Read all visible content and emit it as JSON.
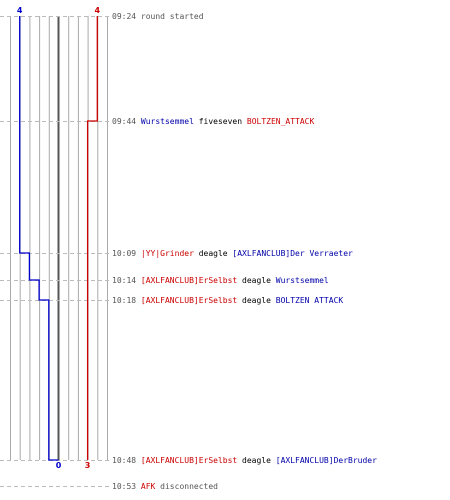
{
  "colors": {
    "team_blue": "#0000cc",
    "team_red": "#cc0000",
    "grid": "#aaaaaa",
    "zero_line": "#555555",
    "dashed": "#bbbbbb"
  },
  "chart_data": {
    "type": "line",
    "x_axis": "players alive",
    "y_axis": "time",
    "xlim": [
      -5,
      5
    ],
    "grid": true,
    "start_counts": {
      "blue": "4",
      "red": "4"
    },
    "end_counts": {
      "blue": "0",
      "red": "3"
    },
    "series": [
      {
        "team": "blue",
        "times": [
          "09:24",
          "10:09",
          "10:14",
          "10:18",
          "10:48"
        ],
        "values": [
          4,
          3,
          2,
          1,
          0
        ]
      },
      {
        "team": "red",
        "times": [
          "09:24",
          "09:44",
          "10:48"
        ],
        "values": [
          4,
          3,
          3
        ]
      }
    ],
    "events": [
      {
        "time": "09:24",
        "parts": [
          {
            "text": "round started",
            "color": "event"
          }
        ]
      },
      {
        "time": "09:44",
        "parts": [
          {
            "text": "Wurstsemmel",
            "color": "blue"
          },
          {
            "text": " fiveseven ",
            "color": "black"
          },
          {
            "text": "BOLTZEN_ATTACK",
            "color": "red"
          }
        ]
      },
      {
        "time": "10:09",
        "parts": [
          {
            "text": "|YY|Grinder",
            "color": "red"
          },
          {
            "text": " deagle ",
            "color": "black"
          },
          {
            "text": "[AXLFANCLUB]Der Verraeter",
            "color": "blue"
          }
        ]
      },
      {
        "time": "10:14",
        "parts": [
          {
            "text": "[AXLFANCLUB]ErSelbst",
            "color": "red"
          },
          {
            "text": " deagle ",
            "color": "black"
          },
          {
            "text": "Wurstsemmel",
            "color": "blue"
          }
        ]
      },
      {
        "time": "10:18",
        "parts": [
          {
            "text": "[AXLFANCLUB]ErSelbst",
            "color": "red"
          },
          {
            "text": " deagle ",
            "color": "black"
          },
          {
            "text": "BOLTZEN ATTACK",
            "color": "blue"
          }
        ]
      },
      {
        "time": "10:48",
        "parts": [
          {
            "text": "[AXLFANCLUB]ErSelbst",
            "color": "red"
          },
          {
            "text": " deagle ",
            "color": "black"
          },
          {
            "text": "[AXLFANCLUB]DerBruder",
            "color": "blue"
          }
        ]
      },
      {
        "time": "10:53",
        "parts": [
          {
            "text": "AFK",
            "color": "red"
          },
          {
            "text": " disconnected",
            "color": "event"
          }
        ]
      }
    ]
  }
}
